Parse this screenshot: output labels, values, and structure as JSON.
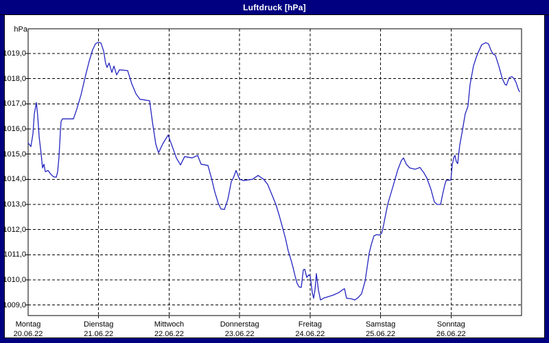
{
  "window": {
    "title": "Luftdruck [hPa]"
  },
  "colors": {
    "titlebar_bg": "#000080",
    "title_text": "#ffffff",
    "panel_bg": "#ffffff",
    "grid": "#000000",
    "line": "#2323c0",
    "label_text": "#000000"
  },
  "chart_data": {
    "type": "line",
    "title": "Luftdruck [hPa]",
    "ylabel": "hPa",
    "unit_label": "hPa",
    "grid": "dashed",
    "ylim": [
      1008.6,
      1020.0
    ],
    "y_ticks": [
      1019,
      1018,
      1017,
      1016,
      1015,
      1014,
      1013,
      1012,
      1011,
      1010,
      1009
    ],
    "y_tick_labels": [
      "1019,0",
      "1018,0",
      "1017,0",
      "1016,0",
      "1015,0",
      "1014,0",
      "1013,0",
      "1012,0",
      "1011,0",
      "1010,0",
      "1009,0"
    ],
    "x_axis_days": [
      {
        "label": "Montag",
        "date": "20.06.22",
        "t": 0
      },
      {
        "label": "Dienstag",
        "date": "21.06.22",
        "t": 1
      },
      {
        "label": "Mittwoch",
        "date": "22.06.22",
        "t": 2
      },
      {
        "label": "Donnerstag",
        "date": "23.06.22",
        "t": 3
      },
      {
        "label": "Freitag",
        "date": "24.06.22",
        "t": 4
      },
      {
        "label": "Samstag",
        "date": "25.06.22",
        "t": 5
      },
      {
        "label": "Sonntag",
        "date": "26.06.22",
        "t": 6
      }
    ],
    "xlim_days": [
      0,
      7
    ],
    "series": [
      {
        "name": "Luftdruck",
        "color": "#2323c0",
        "points": [
          [
            0.0,
            1015.45
          ],
          [
            0.039,
            1015.3
          ],
          [
            0.068,
            1015.8
          ],
          [
            0.088,
            1016.6
          ],
          [
            0.117,
            1017.05
          ],
          [
            0.136,
            1016.5
          ],
          [
            0.156,
            1015.7
          ],
          [
            0.185,
            1015.0
          ],
          [
            0.204,
            1014.45
          ],
          [
            0.224,
            1014.6
          ],
          [
            0.243,
            1014.3
          ],
          [
            0.282,
            1014.35
          ],
          [
            0.321,
            1014.2
          ],
          [
            0.36,
            1014.1
          ],
          [
            0.399,
            1014.08
          ],
          [
            0.419,
            1014.3
          ],
          [
            0.438,
            1014.9
          ],
          [
            0.458,
            1015.9
          ],
          [
            0.467,
            1016.3
          ],
          [
            0.487,
            1016.4
          ],
          [
            0.643,
            1016.4
          ],
          [
            0.691,
            1016.8
          ],
          [
            0.75,
            1017.35
          ],
          [
            0.808,
            1018.05
          ],
          [
            0.866,
            1018.7
          ],
          [
            0.915,
            1019.15
          ],
          [
            0.954,
            1019.38
          ],
          [
            0.993,
            1019.45
          ],
          [
            1.032,
            1019.42
          ],
          [
            1.071,
            1019.1
          ],
          [
            1.1,
            1018.6
          ],
          [
            1.12,
            1018.45
          ],
          [
            1.149,
            1018.62
          ],
          [
            1.188,
            1018.25
          ],
          [
            1.217,
            1018.5
          ],
          [
            1.256,
            1018.15
          ],
          [
            1.295,
            1018.35
          ],
          [
            1.412,
            1018.32
          ],
          [
            1.47,
            1017.8
          ],
          [
            1.529,
            1017.4
          ],
          [
            1.587,
            1017.18
          ],
          [
            1.723,
            1017.12
          ],
          [
            1.762,
            1016.3
          ],
          [
            1.811,
            1015.4
          ],
          [
            1.85,
            1015.05
          ],
          [
            1.908,
            1015.4
          ],
          [
            1.986,
            1015.76
          ],
          [
            2.045,
            1015.3
          ],
          [
            2.103,
            1014.85
          ],
          [
            2.161,
            1014.57
          ],
          [
            2.22,
            1014.9
          ],
          [
            2.327,
            1014.85
          ],
          [
            2.405,
            1014.95
          ],
          [
            2.453,
            1014.6
          ],
          [
            2.551,
            1014.55
          ],
          [
            2.6,
            1014.05
          ],
          [
            2.648,
            1013.5
          ],
          [
            2.697,
            1013.05
          ],
          [
            2.736,
            1012.82
          ],
          [
            2.784,
            1012.8
          ],
          [
            2.833,
            1013.2
          ],
          [
            2.882,
            1013.9
          ],
          [
            2.911,
            1014.05
          ],
          [
            2.95,
            1014.35
          ],
          [
            2.999,
            1014.0
          ],
          [
            3.057,
            1013.95
          ],
          [
            3.184,
            1014.0
          ],
          [
            3.262,
            1014.15
          ],
          [
            3.34,
            1014.0
          ],
          [
            3.398,
            1013.8
          ],
          [
            3.456,
            1013.4
          ],
          [
            3.515,
            1013.0
          ],
          [
            3.563,
            1012.55
          ],
          [
            3.612,
            1012.05
          ],
          [
            3.651,
            1011.65
          ],
          [
            3.69,
            1011.15
          ],
          [
            3.729,
            1010.8
          ],
          [
            3.758,
            1010.5
          ],
          [
            3.787,
            1010.15
          ],
          [
            3.817,
            1009.85
          ],
          [
            3.846,
            1009.72
          ],
          [
            3.875,
            1009.7
          ],
          [
            3.904,
            1010.4
          ],
          [
            3.924,
            1010.42
          ],
          [
            3.953,
            1010.1
          ],
          [
            3.982,
            1010.2
          ],
          [
            4.001,
            1010.15
          ],
          [
            4.031,
            1009.5
          ],
          [
            4.05,
            1009.27
          ],
          [
            4.07,
            1009.6
          ],
          [
            4.089,
            1010.25
          ],
          [
            4.118,
            1009.6
          ],
          [
            4.147,
            1009.2
          ],
          [
            4.196,
            1009.28
          ],
          [
            4.254,
            1009.33
          ],
          [
            4.332,
            1009.4
          ],
          [
            4.41,
            1009.5
          ],
          [
            4.469,
            1009.62
          ],
          [
            4.488,
            1009.65
          ],
          [
            4.517,
            1009.27
          ],
          [
            4.585,
            1009.25
          ],
          [
            4.634,
            1009.2
          ],
          [
            4.683,
            1009.3
          ],
          [
            4.731,
            1009.45
          ],
          [
            4.78,
            1009.95
          ],
          [
            4.809,
            1010.5
          ],
          [
            4.838,
            1011.05
          ],
          [
            4.868,
            1011.4
          ],
          [
            4.906,
            1011.75
          ],
          [
            4.945,
            1011.8
          ],
          [
            4.984,
            1011.78
          ],
          [
            5.014,
            1011.85
          ],
          [
            5.033,
            1012.05
          ],
          [
            5.101,
            1013.0
          ],
          [
            5.179,
            1013.75
          ],
          [
            5.247,
            1014.4
          ],
          [
            5.296,
            1014.75
          ],
          [
            5.325,
            1014.85
          ],
          [
            5.364,
            1014.6
          ],
          [
            5.413,
            1014.45
          ],
          [
            5.491,
            1014.4
          ],
          [
            5.559,
            1014.47
          ],
          [
            5.617,
            1014.25
          ],
          [
            5.656,
            1014.05
          ],
          [
            5.715,
            1013.6
          ],
          [
            5.763,
            1013.1
          ],
          [
            5.802,
            1013.0
          ],
          [
            5.851,
            1013.0
          ],
          [
            5.88,
            1013.4
          ],
          [
            5.909,
            1013.75
          ],
          [
            5.929,
            1013.95
          ],
          [
            5.997,
            1013.97
          ],
          [
            6.016,
            1014.55
          ],
          [
            6.036,
            1014.85
          ],
          [
            6.055,
            1014.95
          ],
          [
            6.075,
            1014.7
          ],
          [
            6.094,
            1014.62
          ],
          [
            6.123,
            1015.35
          ],
          [
            6.162,
            1015.95
          ],
          [
            6.201,
            1016.6
          ],
          [
            6.24,
            1016.9
          ],
          [
            6.269,
            1017.75
          ],
          [
            6.318,
            1018.5
          ],
          [
            6.357,
            1018.85
          ],
          [
            6.386,
            1019.05
          ],
          [
            6.435,
            1019.35
          ],
          [
            6.493,
            1019.43
          ],
          [
            6.532,
            1019.38
          ],
          [
            6.571,
            1019.1
          ],
          [
            6.6,
            1018.97
          ],
          [
            6.629,
            1018.93
          ],
          [
            6.678,
            1018.5
          ],
          [
            6.727,
            1018.0
          ],
          [
            6.766,
            1017.77
          ],
          [
            6.786,
            1017.74
          ],
          [
            6.825,
            1018.04
          ],
          [
            6.864,
            1018.08
          ],
          [
            6.893,
            1018.0
          ],
          [
            6.922,
            1017.85
          ],
          [
            6.951,
            1017.6
          ],
          [
            6.971,
            1017.48
          ]
        ]
      }
    ]
  }
}
